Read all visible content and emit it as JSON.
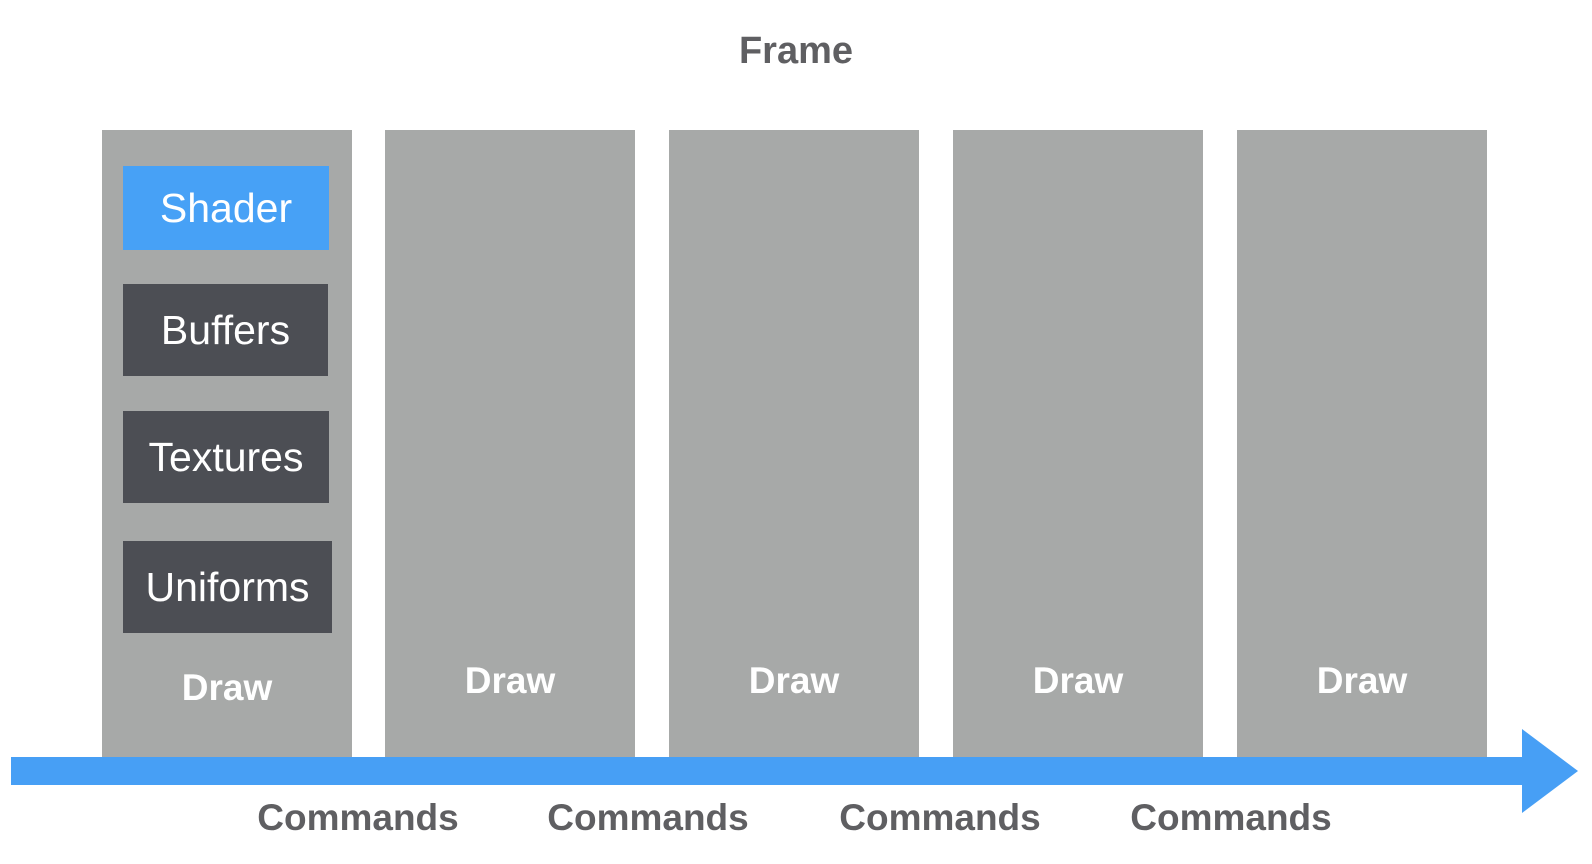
{
  "diagram": {
    "title": "Frame",
    "draw_label": "Draw",
    "first_column_blocks": [
      {
        "label": "Shader",
        "color": "#47a1f6"
      },
      {
        "label": "Buffers",
        "color": "#4c4e54"
      },
      {
        "label": "Textures",
        "color": "#4c4e54"
      },
      {
        "label": "Uniforms",
        "color": "#4c4e54"
      }
    ],
    "column_color": "#a7a9a8",
    "arrow_color": "#479ff5",
    "commands_label": "Commands"
  }
}
